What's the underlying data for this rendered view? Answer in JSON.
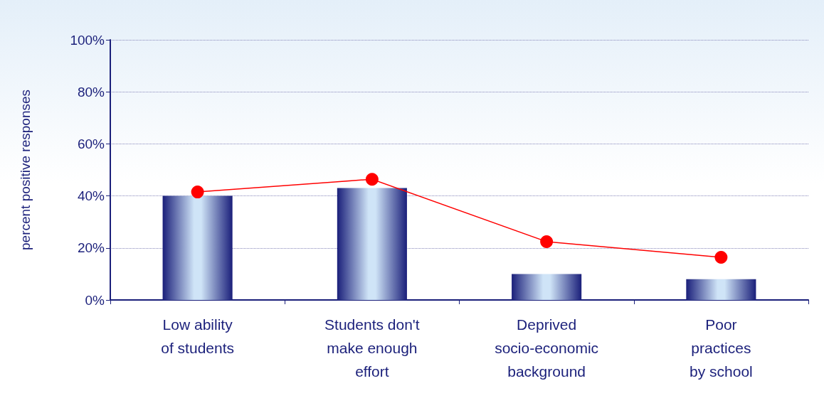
{
  "chart_data": {
    "type": "bar",
    "ylabel": "percent positive responses",
    "categories": [
      "Low ability\nof students",
      "Students don't\nmake enough\neffort",
      "Deprived\nsocio-economic\nbackground",
      "Poor\npractices\nby school"
    ],
    "series": [
      {
        "color": "#1a1f7a",
        "values": [
          40,
          43,
          10,
          8
        ]
      },
      {
        "type": "line",
        "color": "#ff0000",
        "values": [
          41.5,
          46.4,
          22.4,
          16.4
        ],
        "marker": "circle"
      }
    ],
    "ylim": [
      0,
      100
    ],
    "yticks": [
      {
        "value": 0,
        "label": "0%"
      },
      {
        "value": 20,
        "label": "20%"
      },
      {
        "value": 40,
        "label": "40%"
      },
      {
        "value": 60,
        "label": "60%"
      },
      {
        "value": 80,
        "label": "80%"
      },
      {
        "value": 100,
        "label": "100%"
      }
    ],
    "grid": "y"
  }
}
